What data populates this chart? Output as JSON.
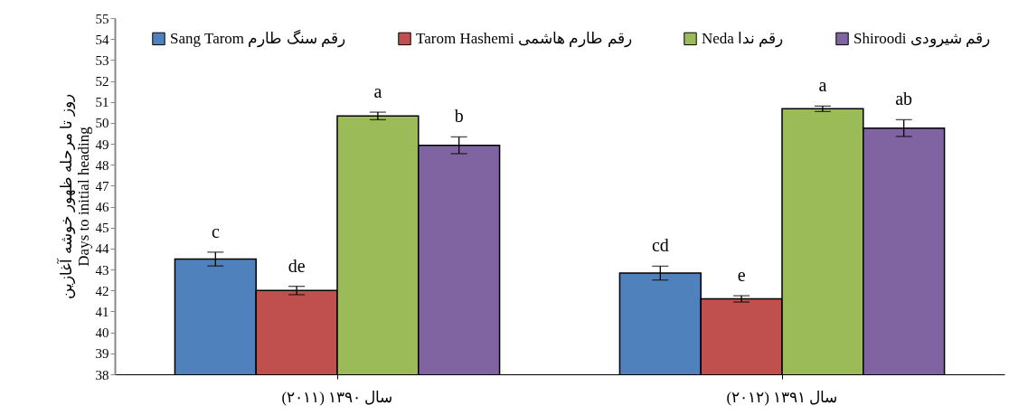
{
  "chart_data": {
    "type": "bar",
    "ylabel": "روز تا مرحله ظهور خوشه آغازین\nDays to initial heading",
    "categories": [
      "سال ۱۳۹۰ (۲۰۱۱)",
      "سال ۱۳۹۱ (۲۰۱۲)"
    ],
    "ylim": [
      38,
      55
    ],
    "yticks": [
      38,
      39,
      40,
      41,
      42,
      43,
      44,
      45,
      46,
      47,
      48,
      49,
      50,
      51,
      52,
      53,
      54,
      55
    ],
    "grid": false,
    "legend": "top",
    "series": [
      {
        "name": "Sang Tarom رقم سنگ طارم",
        "color": "#4f81bd",
        "values": [
          43.5,
          42.83
        ],
        "errors": [
          0.33,
          0.33
        ],
        "value_labels": [
          "c",
          "cd"
        ]
      },
      {
        "name": "Tarom Hashemi رقم طارم هاشمی",
        "color": "#c0504d",
        "values": [
          42.0,
          41.6
        ],
        "errors": [
          0.2,
          0.15
        ],
        "value_labels": [
          "de",
          "e"
        ]
      },
      {
        "name": "Neda رقم ندا",
        "color": "#9bbb59",
        "values": [
          50.33,
          50.67
        ],
        "errors": [
          0.18,
          0.13
        ],
        "value_labels": [
          "a",
          "a"
        ]
      },
      {
        "name": "Shiroodi رقم شیرودی",
        "color": "#8064a2",
        "values": [
          48.93,
          49.75
        ],
        "errors": [
          0.4,
          0.4
        ],
        "value_labels": [
          "b",
          "ab"
        ]
      }
    ]
  }
}
